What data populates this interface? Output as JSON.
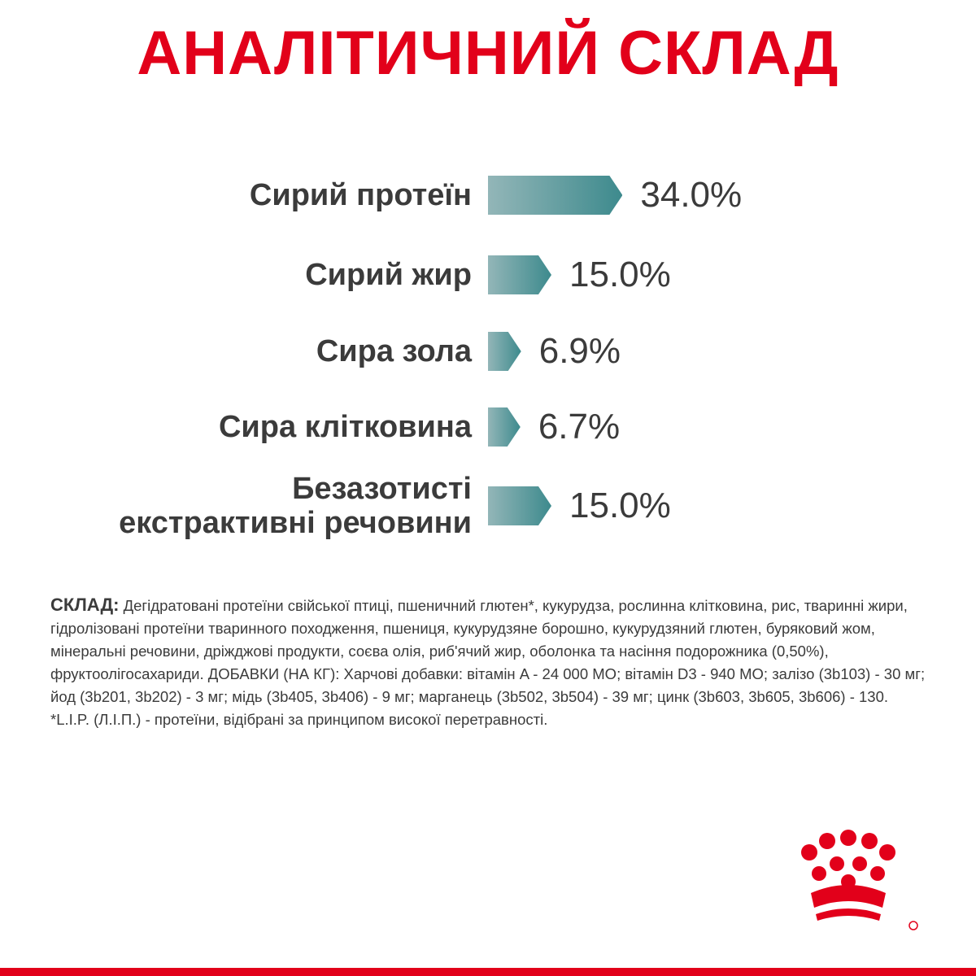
{
  "chart_data": {
    "type": "bar",
    "title": "АНАЛІТИЧНИЙ СКЛАД",
    "categories": [
      "Сирий протеїн",
      "Сирий жир",
      "Сира зола",
      "Сира клітковина",
      "Безазотисті екстрактивні речовини"
    ],
    "values": [
      34.0,
      15.0,
      6.9,
      6.7,
      15.0
    ],
    "value_labels": [
      "34.0%",
      "15.0%",
      "6.9%",
      "6.7%",
      "15.0%"
    ],
    "color": "#3d8a8d"
  },
  "composition": {
    "label": "СКЛАД:",
    "text": "Дегідратовані протеїни свійської птиці, пшеничний глютен*, кукурудза, рослинна клітковина, рис, тваринні жири, гідролізовані протеїни тваринного походження, пшениця, кукурудзяне борошно, кукурудзяний глютен, буряковий жом, мінеральні речовини, дріжджові продукти, соєва олія, риб'ячий жир, оболонка та насіння подорожника (0,50%), фруктоолігосахариди. ДОБАВКИ (НА КГ): Харчові добавки: вітамін A - 24 000 МО; вітамін D3 - 940 МО; залізо (3b103) - 30 мг; йод (3b201, 3b202) - 3 мг; мідь (3b405, 3b406) - 9 мг; марганець (3b502, 3b504) - 39 мг; цинк (3b603, 3b605, 3b606) - 130.",
    "footnote": "*L.I.P. (Л.І.П.) - протеїни, відібрані за принципом високої перетравності."
  }
}
